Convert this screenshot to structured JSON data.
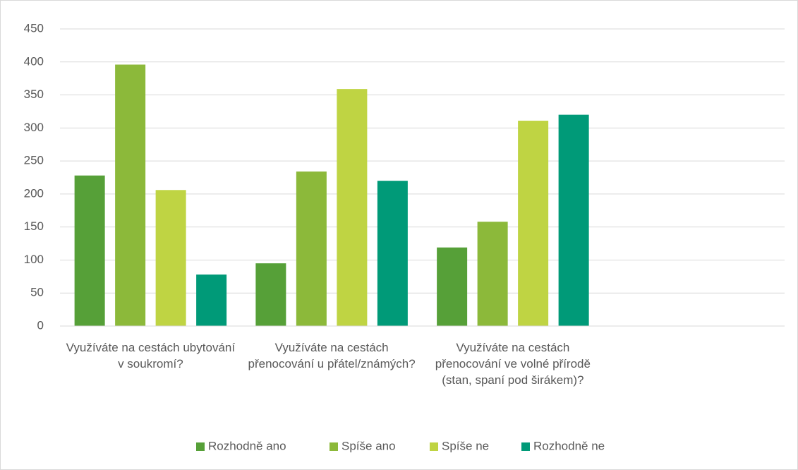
{
  "chart_data": {
    "type": "bar",
    "categories": [
      "Využíváte na cestách ubytování v soukromí?",
      "Využíváte na cestách přenocování u přátel/známých?",
      "Využíváte na cestách přenocování ve volné přírodě (stan, spaní pod širákem)?",
      null
    ],
    "series": [
      {
        "name": "Rozhodně ano",
        "color": "#56a038",
        "values": [
          228,
          95,
          119,
          null
        ]
      },
      {
        "name": "Spíše ano",
        "color": "#8cb93a",
        "values": [
          396,
          234,
          158,
          null
        ]
      },
      {
        "name": "Spíše ne",
        "color": "#bfd443",
        "values": [
          206,
          359,
          311,
          null
        ]
      },
      {
        "name": "Rozhodně ne",
        "color": "#009a78",
        "values": [
          78,
          220,
          320,
          null
        ]
      }
    ],
    "ylim": [
      0,
      450
    ],
    "yticks": [
      0,
      50,
      100,
      150,
      200,
      250,
      300,
      350,
      400,
      450
    ],
    "grid": true,
    "legend": "bottom"
  }
}
